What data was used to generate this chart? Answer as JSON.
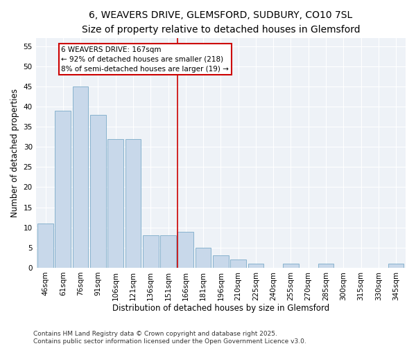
{
  "title": "6, WEAVERS DRIVE, GLEMSFORD, SUDBURY, CO10 7SL",
  "subtitle": "Size of property relative to detached houses in Glemsford",
  "xlabel": "Distribution of detached houses by size in Glemsford",
  "ylabel": "Number of detached properties",
  "categories": [
    "46sqm",
    "61sqm",
    "76sqm",
    "91sqm",
    "106sqm",
    "121sqm",
    "136sqm",
    "151sqm",
    "166sqm",
    "181sqm",
    "196sqm",
    "210sqm",
    "225sqm",
    "240sqm",
    "255sqm",
    "270sqm",
    "285sqm",
    "300sqm",
    "315sqm",
    "330sqm",
    "345sqm"
  ],
  "values": [
    11,
    39,
    45,
    38,
    32,
    32,
    8,
    8,
    9,
    5,
    3,
    2,
    1,
    0,
    1,
    0,
    1,
    0,
    0,
    0,
    1
  ],
  "bar_color": "#c8d8ea",
  "bar_edge_color": "#7aaac8",
  "marker_color": "#cc0000",
  "annotation_line1": "6 WEAVERS DRIVE: 167sqm",
  "annotation_line2": "← 92% of detached houses are smaller (218)",
  "annotation_line3": "8% of semi-detached houses are larger (19) →",
  "annotation_box_color": "white",
  "annotation_box_edge_color": "#cc0000",
  "footer": "Contains HM Land Registry data © Crown copyright and database right 2025.\nContains public sector information licensed under the Open Government Licence v3.0.",
  "ylim": [
    0,
    57
  ],
  "yticks": [
    0,
    5,
    10,
    15,
    20,
    25,
    30,
    35,
    40,
    45,
    50,
    55
  ],
  "bg_color": "#eef2f7",
  "grid_color": "white",
  "title_fontsize": 10,
  "subtitle_fontsize": 9,
  "axis_label_fontsize": 8.5,
  "tick_fontsize": 7.5,
  "footer_fontsize": 6.5,
  "annotation_fontsize": 7.5,
  "marker_index": 8
}
